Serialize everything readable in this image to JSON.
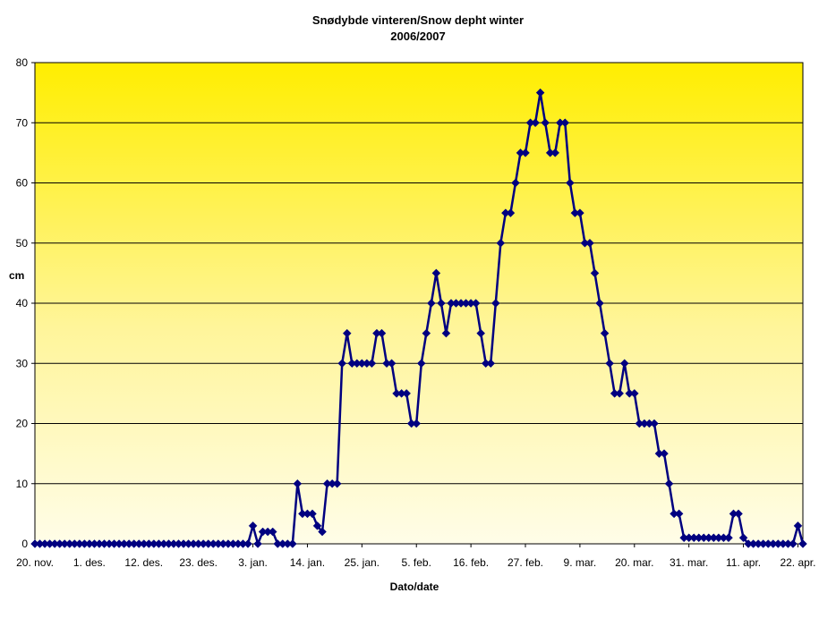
{
  "chart_data": {
    "type": "line",
    "title": "Snødybde vinteren/Snow depht winter",
    "subtitle": "2006/2007",
    "xlabel": "Dato/date",
    "ylabel": "cm",
    "ylim": [
      0,
      80
    ],
    "yticks": [
      "0",
      "10",
      "20",
      "30",
      "40",
      "50",
      "60",
      "70",
      "80"
    ],
    "xticks": [
      "20. nov.",
      "1. des.",
      "12. des.",
      "23. des.",
      "3. jan.",
      "14. jan.",
      "25. jan.",
      "5. feb.",
      "16. feb.",
      "27. feb.",
      "9. mar.",
      "20. mar.",
      "31. mar.",
      "11. apr.",
      "22. apr."
    ],
    "x_start": "2006-11-20",
    "x_end": "2007-04-23",
    "grid": true,
    "legend": "none",
    "colors": {
      "line": "#000080",
      "marker": "#000080",
      "background_top": "#ffee00",
      "background_bottom": "#fffde8",
      "grid": "#000000"
    },
    "series": [
      {
        "values": [
          0,
          0,
          0,
          0,
          0,
          0,
          0,
          0,
          0,
          0,
          0,
          0,
          0,
          0,
          0,
          0,
          0,
          0,
          0,
          0,
          0,
          0,
          0,
          0,
          0,
          0,
          0,
          0,
          0,
          0,
          0,
          0,
          0,
          0,
          0,
          0,
          0,
          0,
          0,
          0,
          0,
          0,
          0,
          0,
          3,
          0,
          2,
          2,
          2,
          0,
          0,
          0,
          0,
          10,
          5,
          5,
          5,
          3,
          2,
          10,
          10,
          10,
          30,
          35,
          30,
          30,
          30,
          30,
          30,
          35,
          35,
          30,
          30,
          25,
          25,
          25,
          20,
          20,
          30,
          35,
          40,
          45,
          40,
          35,
          40,
          40,
          40,
          40,
          40,
          40,
          35,
          30,
          30,
          40,
          50,
          55,
          55,
          60,
          65,
          65,
          70,
          70,
          75,
          70,
          65,
          65,
          70,
          70,
          60,
          55,
          55,
          50,
          50,
          45,
          40,
          35,
          30,
          25,
          25,
          30,
          25,
          25,
          20,
          20,
          20,
          20,
          15,
          15,
          10,
          5,
          5,
          1,
          1,
          1,
          1,
          1,
          1,
          1,
          1,
          1,
          1,
          5,
          5,
          1,
          0,
          0,
          0,
          0,
          0,
          0,
          0,
          0,
          0,
          0,
          3,
          0
        ]
      }
    ]
  }
}
